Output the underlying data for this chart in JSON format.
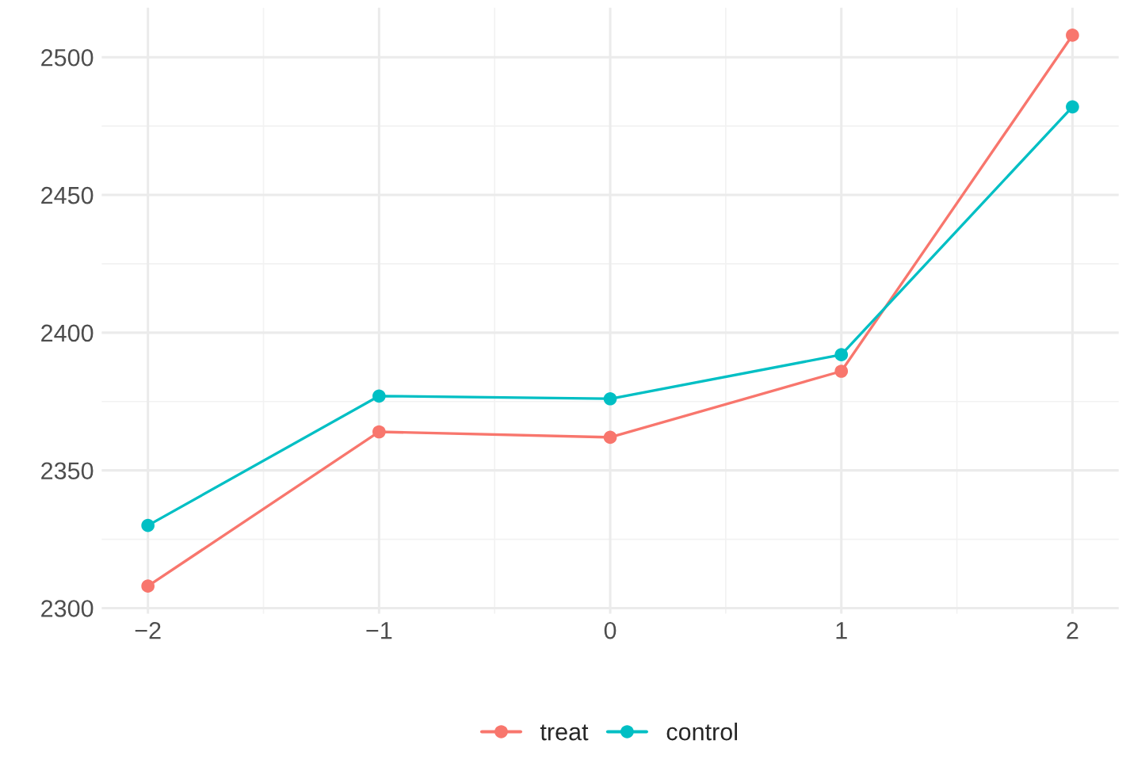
{
  "chart_data": {
    "type": "line",
    "x": [
      -2,
      -1,
      0,
      1,
      2
    ],
    "series": [
      {
        "name": "treat",
        "color": "#f8766d",
        "values": [
          2308,
          2364,
          2362,
          2386,
          2508
        ]
      },
      {
        "name": "control",
        "color": "#00bfc4",
        "values": [
          2330,
          2377,
          2376,
          2392,
          2482
        ]
      }
    ],
    "xlim": [
      -2.2,
      2.2
    ],
    "ylim": [
      2298,
      2518
    ],
    "xticks": [
      {
        "value": -2,
        "label": "−2"
      },
      {
        "value": -1,
        "label": "−1"
      },
      0,
      1,
      2
    ],
    "yticks": [
      2300,
      2350,
      2400,
      2450,
      2500
    ],
    "grid": true,
    "legend": "bottom",
    "marker": "circle",
    "line_style": "solid"
  }
}
